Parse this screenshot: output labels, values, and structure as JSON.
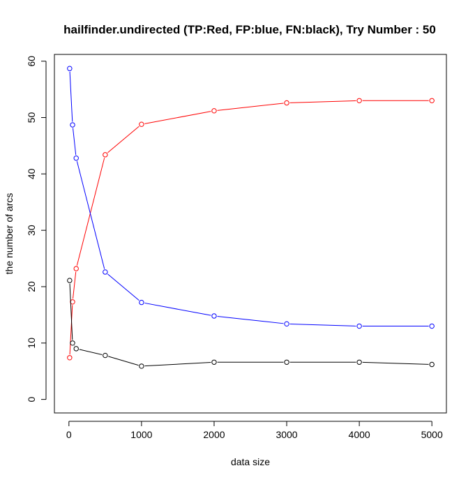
{
  "chart_data": {
    "type": "line",
    "title": "hailfinder.undirected  (TP:Red, FP:blue, FN:black),  Try Number :  50",
    "xlabel": "data size",
    "ylabel": "the number of arcs",
    "xlim": [
      -200,
      5200
    ],
    "ylim": [
      -2.4,
      61.2
    ],
    "xticks": [
      0,
      1000,
      2000,
      3000,
      4000,
      5000
    ],
    "xtick_labels": [
      "0",
      "1000",
      "2000",
      "3000",
      "4000",
      "5000"
    ],
    "yticks": [
      0,
      10,
      20,
      30,
      40,
      50,
      60
    ],
    "ytick_labels": [
      "0",
      "10",
      "20",
      "30",
      "40",
      "50",
      "60"
    ],
    "grid": false,
    "x": [
      10,
      50,
      100,
      500,
      1000,
      2000,
      3000,
      4000,
      5000
    ],
    "series": [
      {
        "color": "#ff0000",
        "values": [
          7.4,
          17.3,
          23.2,
          43.4,
          48.8,
          51.2,
          52.6,
          53.0,
          53.0
        ]
      },
      {
        "color": "#0000ff",
        "values": [
          58.7,
          48.7,
          42.8,
          22.6,
          17.2,
          14.8,
          13.4,
          13.0,
          13.0
        ]
      },
      {
        "color": "#000000",
        "values": [
          21.1,
          10.0,
          9.0,
          7.8,
          5.9,
          6.6,
          6.6,
          6.6,
          6.2
        ]
      }
    ]
  }
}
